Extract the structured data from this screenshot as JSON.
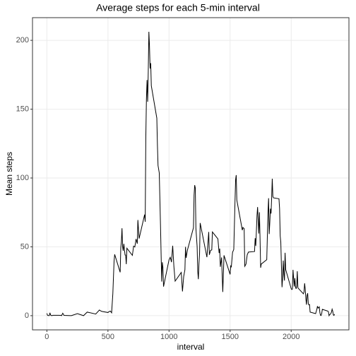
{
  "chart_data": {
    "type": "line",
    "title": "Average steps for each 5-min interval",
    "x_label": "interval",
    "y_label": "Mean steps",
    "color": "#000000",
    "grid": true,
    "xlim": [
      -117.75,
      2472.75
    ],
    "xticks": [
      0,
      500,
      1000,
      1500,
      2000
    ],
    "ylim": [
      -10.31,
      216.48
    ],
    "yticks": [
      0,
      50,
      100,
      150,
      200
    ],
    "x": [
      0,
      5,
      10,
      20,
      25,
      30,
      40,
      50,
      100,
      110,
      115,
      120,
      130,
      140,
      200,
      250,
      300,
      330,
      400,
      430,
      440,
      450,
      500,
      510,
      520,
      530,
      540,
      550,
      555,
      600,
      605,
      610,
      615,
      620,
      625,
      630,
      640,
      645,
      650,
      655,
      700,
      710,
      720,
      730,
      740,
      745,
      755,
      800,
      805,
      810,
      815,
      820,
      825,
      830,
      835,
      840,
      845,
      850,
      855,
      900,
      905,
      910,
      920,
      930,
      935,
      940,
      945,
      950,
      955,
      1000,
      1010,
      1020,
      1030,
      1040,
      1050,
      1100,
      1110,
      1120,
      1130,
      1135,
      1140,
      1150,
      1200,
      1205,
      1210,
      1215,
      1220,
      1230,
      1235,
      1240,
      1245,
      1250,
      1255,
      1310,
      1325,
      1330,
      1340,
      1350,
      1355,
      1400,
      1410,
      1415,
      1420,
      1430,
      1440,
      1450,
      1500,
      1505,
      1510,
      1520,
      1530,
      1535,
      1540,
      1545,
      1550,
      1555,
      1600,
      1605,
      1615,
      1620,
      1630,
      1640,
      1650,
      1700,
      1705,
      1710,
      1715,
      1720,
      1725,
      1730,
      1735,
      1740,
      1745,
      1750,
      1755,
      1800,
      1805,
      1810,
      1815,
      1820,
      1825,
      1830,
      1835,
      1840,
      1845,
      1850,
      1855,
      1900,
      1905,
      1910,
      1915,
      1920,
      1925,
      1930,
      1935,
      1940,
      1945,
      1950,
      1955,
      2000,
      2005,
      2010,
      2015,
      2020,
      2025,
      2030,
      2035,
      2040,
      2045,
      2050,
      2055,
      2100,
      2105,
      2110,
      2115,
      2120,
      2125,
      2130,
      2135,
      2140,
      2145,
      2150,
      2155,
      2200,
      2210,
      2215,
      2220,
      2230,
      2235,
      2240,
      2245,
      2250,
      2255,
      2300,
      2305,
      2310,
      2315,
      2320,
      2325,
      2330,
      2335,
      2340,
      2345,
      2350,
      2355
    ],
    "values": [
      1.7,
      0.3,
      0.1,
      0.1,
      2.1,
      0.5,
      0,
      0.3,
      0.3,
      0.2,
      0.3,
      0,
      1.8,
      0.2,
      0,
      1.5,
      0,
      2.6,
      1.2,
      4.1,
      3.5,
      3.1,
      2.3,
      3.0,
      3.3,
      2.1,
      16.0,
      39.5,
      44.5,
      31.5,
      49.3,
      53.8,
      63.5,
      50.0,
      47.1,
      52.2,
      44.1,
      44.0,
      37.4,
      49.0,
      43.8,
      50.5,
      49.9,
      55.7,
      52.3,
      69.5,
      56.0,
      73.4,
      68.2,
      129.4,
      157.5,
      171.2,
      155.4,
      177.3,
      206.2,
      195.9,
      179.6,
      183.4,
      167.0,
      143.5,
      124.0,
      109.1,
      103.7,
      66.2,
      45.2,
      24.8,
      38.8,
      35.0,
      21.1,
      40.6,
      42.4,
      38.9,
      50.8,
      35.5,
      25.1,
      31.4,
      17.6,
      28.5,
      33.3,
      50.0,
      42.0,
      47.4,
      63.9,
      87.5,
      94.8,
      92.8,
      63.4,
      50.2,
      32.4,
      26.5,
      37.7,
      45.1,
      67.3,
      42.5,
      60.8,
      44.2,
      47.4,
      47.8,
      60.8,
      55.8,
      45.5,
      48.7,
      35.5,
      42.3,
      17.2,
      43.8,
      30.0,
      36.1,
      35.5,
      46.0,
      48.1,
      65.3,
      82.9,
      98.7,
      102.1,
      84.0,
      62.1,
      64.1,
      63.2,
      35.9,
      37.5,
      44.2,
      46.2,
      46.6,
      56.3,
      50.7,
      61.2,
      72.7,
      78.9,
      68.9,
      59.7,
      75.1,
      56.5,
      34.8,
      37.5,
      40.7,
      58.0,
      74.7,
      85.3,
      59.3,
      67.8,
      77.7,
      74.2,
      85.3,
      99.5,
      86.6,
      85.6,
      84.9,
      77.8,
      58.0,
      53.4,
      36.3,
      20.7,
      27.4,
      40.0,
      30.2,
      25.5,
      45.7,
      33.5,
      19.6,
      19.0,
      19.3,
      33.3,
      26.8,
      21.2,
      27.3,
      21.3,
      19.5,
      21.3,
      32.3,
      20.2,
      15.9,
      17.2,
      23.5,
      19.2,
      12.5,
      8.0,
      14.7,
      16.3,
      8.7,
      7.8,
      8.1,
      2.6,
      1.5,
      4.6,
      6.9,
      5.5,
      6.4,
      2.2,
      0.3,
      0.1,
      1.6,
      4.6,
      3.3,
      2.8,
      0,
      0.8,
      1.0,
      1.6,
      2.6,
      4.7,
      3.3,
      0.6,
      0.2,
      1.1
    ]
  }
}
